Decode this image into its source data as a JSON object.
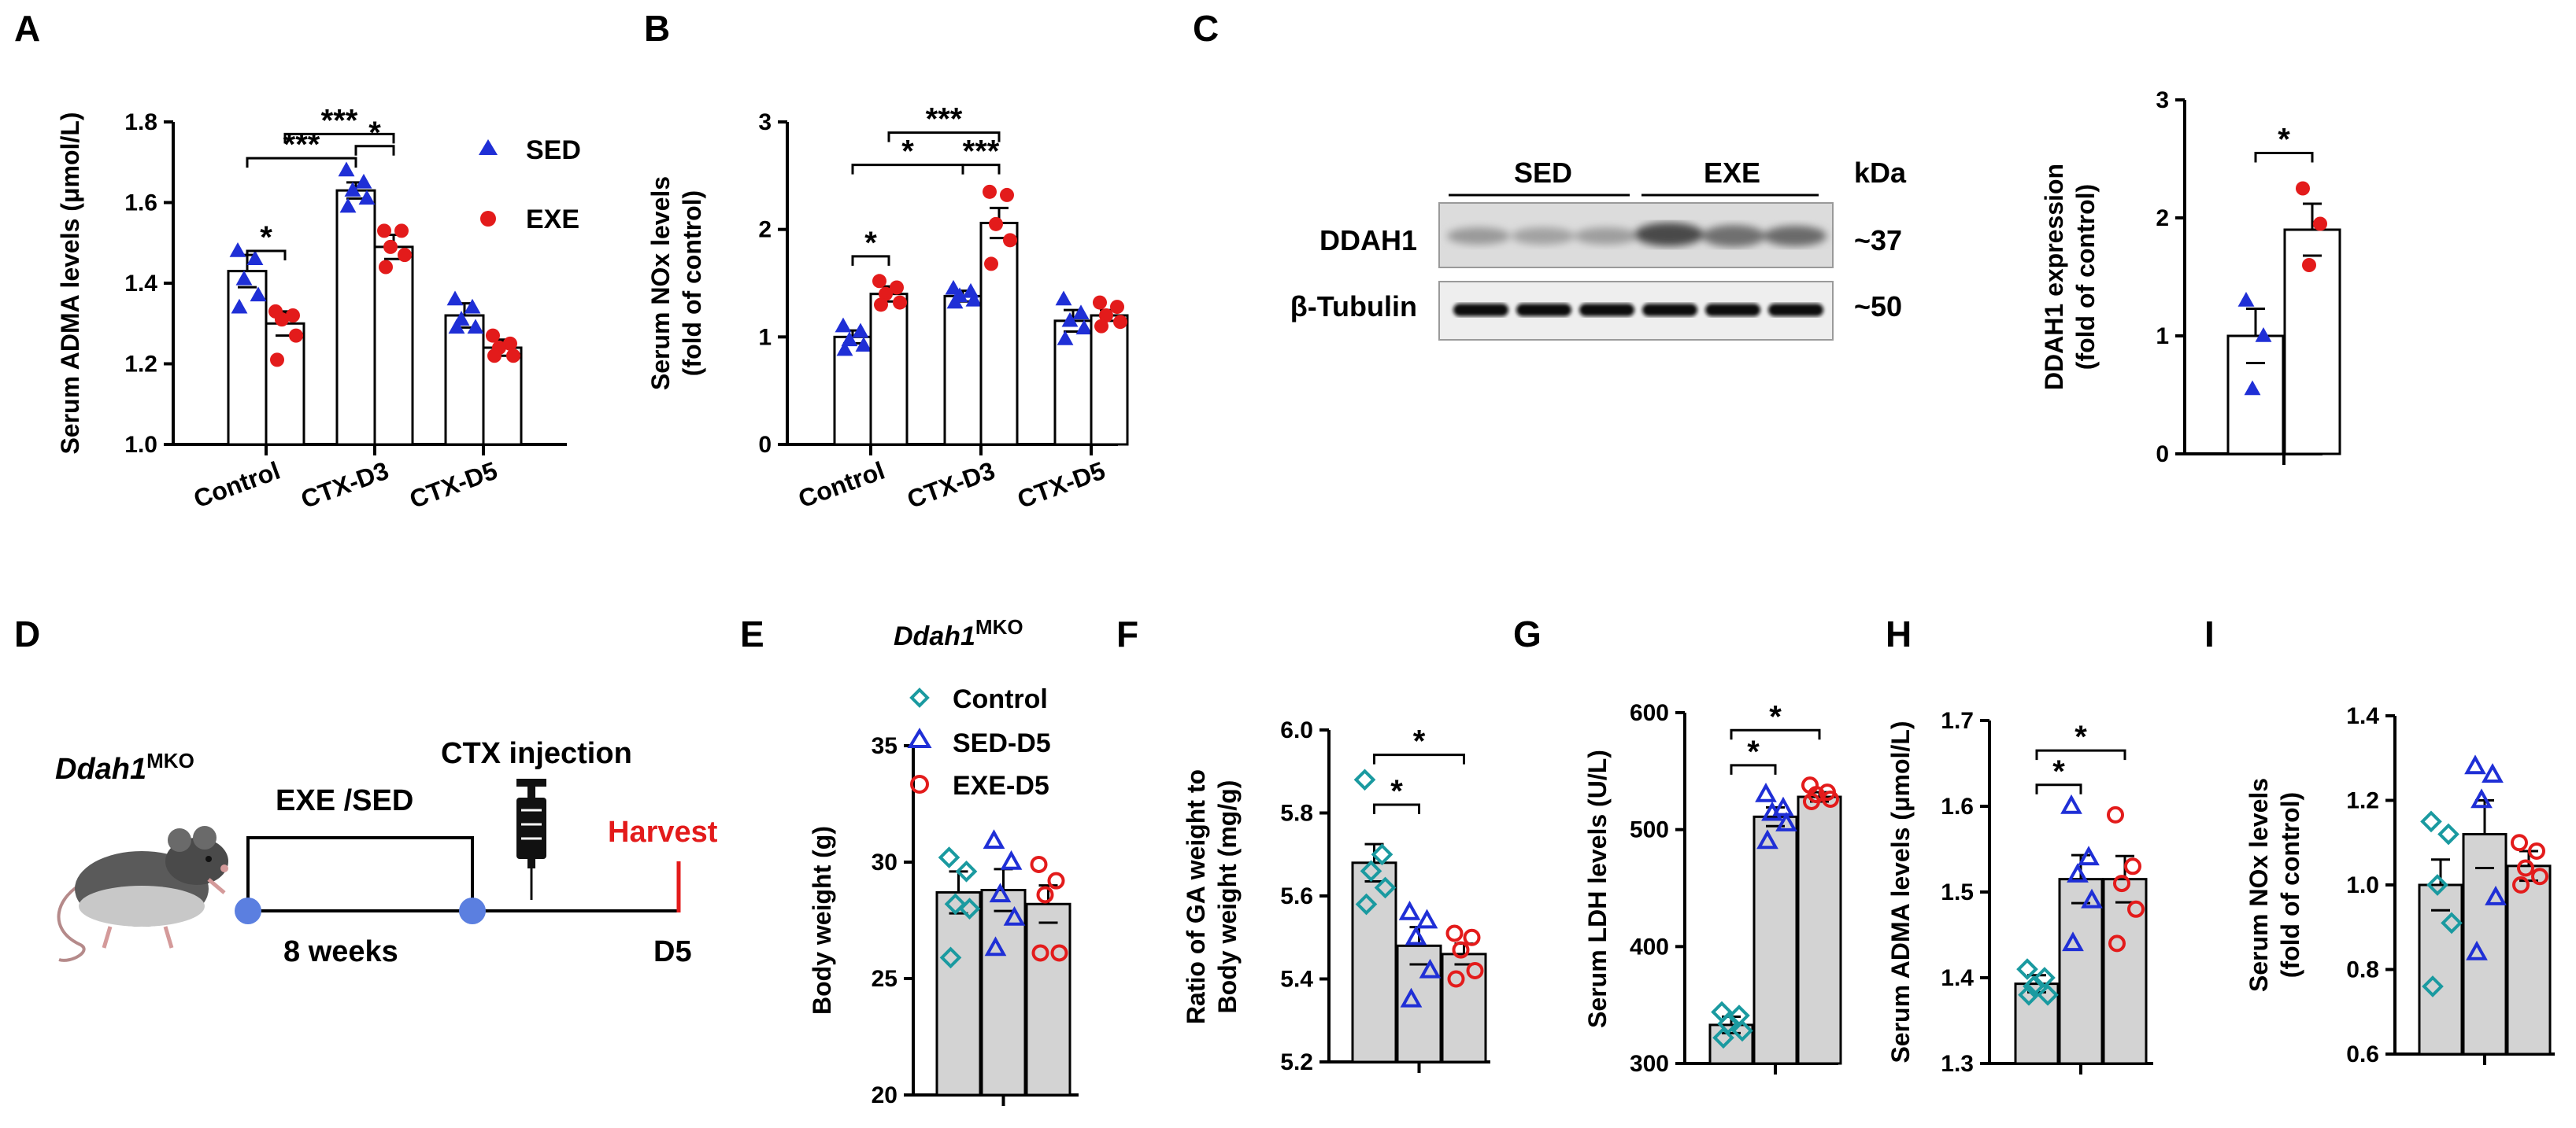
{
  "colors": {
    "sed": "#1f2fd6",
    "exe": "#e31b1b",
    "control": "#1a9aa0",
    "bar_gray": "#d3d3d3",
    "harvest": "#e31b1b",
    "timeline_dot": "#5b7fe0"
  },
  "panel_labels": [
    "A",
    "B",
    "C",
    "D",
    "E",
    "F",
    "G",
    "H",
    "I"
  ],
  "chart_data": [
    {
      "id": "A",
      "type": "bar",
      "ylabel": "Serum ADMA levels (μmol/L)",
      "ylim": [
        1.0,
        1.8
      ],
      "yticks": [
        "1.0",
        "1.2",
        "1.4",
        "1.6",
        "1.8"
      ],
      "categories": [
        "Control",
        "CTX-D3",
        "CTX-D5"
      ],
      "series": [
        {
          "name": "SED",
          "marker": "triangle",
          "values": [
            1.43,
            1.63,
            1.32
          ],
          "sem": [
            0.04,
            0.02,
            0.03
          ],
          "points": [
            [
              1.48,
              1.46,
              1.41,
              1.37,
              1.34
            ],
            [
              1.68,
              1.65,
              1.63,
              1.61,
              1.59
            ],
            [
              1.36,
              1.34,
              1.31,
              1.29,
              1.29
            ]
          ]
        },
        {
          "name": "EXE",
          "marker": "circle",
          "values": [
            1.3,
            1.49,
            1.24
          ],
          "sem": [
            0.03,
            0.03,
            0.02
          ],
          "points": [
            [
              1.33,
              1.32,
              1.31,
              1.27,
              1.21
            ],
            [
              1.53,
              1.53,
              1.49,
              1.47,
              1.44
            ],
            [
              1.27,
              1.25,
              1.24,
              1.22,
              1.22
            ]
          ]
        }
      ],
      "legend": [
        "SED",
        "EXE"
      ],
      "annotations": [
        {
          "from": [
            0,
            0
          ],
          "to": [
            0,
            1
          ],
          "level": 1.48,
          "text": "*"
        },
        {
          "from": [
            0,
            0
          ],
          "to": [
            1,
            0
          ],
          "level": 1.71,
          "text": "***"
        },
        {
          "from": [
            1,
            0
          ],
          "to": [
            1,
            1
          ],
          "level": 1.74,
          "text": "*"
        },
        {
          "from": [
            0,
            1
          ],
          "to": [
            1,
            1
          ],
          "level": 1.77,
          "text": "***"
        }
      ]
    },
    {
      "id": "B",
      "type": "bar",
      "ylabel": [
        "Serum NOx levels",
        "(fold of control)"
      ],
      "ylim": [
        0,
        3
      ],
      "yticks": [
        "0",
        "1",
        "2",
        "3"
      ],
      "categories": [
        "Control",
        "CTX-D3",
        "CTX-D5"
      ],
      "series": [
        {
          "name": "SED",
          "marker": "triangle",
          "values": [
            1.0,
            1.38,
            1.15
          ],
          "sem": [
            0.06,
            0.05,
            0.1
          ],
          "points": [
            [
              1.1,
              1.05,
              0.97,
              0.92,
              0.88
            ],
            [
              1.45,
              1.42,
              1.38,
              1.34,
              1.32
            ],
            [
              1.35,
              1.22,
              1.15,
              1.08,
              0.98
            ]
          ]
        },
        {
          "name": "EXE",
          "marker": "circle",
          "values": [
            1.4,
            2.06,
            1.2
          ],
          "sem": [
            0.07,
            0.14,
            0.05
          ],
          "points": [
            [
              1.52,
              1.46,
              1.4,
              1.32,
              1.3
            ],
            [
              2.35,
              2.32,
              2.05,
              1.9,
              1.68
            ],
            [
              1.32,
              1.28,
              1.2,
              1.14,
              1.1
            ]
          ]
        }
      ],
      "annotations": [
        {
          "from": [
            0,
            0
          ],
          "to": [
            0,
            1
          ],
          "level": 1.75,
          "text": "*"
        },
        {
          "from": [
            0,
            0
          ],
          "to": [
            1,
            0
          ],
          "level": 2.6,
          "text": "*"
        },
        {
          "from": [
            1,
            0
          ],
          "to": [
            1,
            1
          ],
          "level": 2.6,
          "text": "***"
        },
        {
          "from": [
            0,
            1
          ],
          "to": [
            1,
            1
          ],
          "level": 2.9,
          "text": "***"
        }
      ]
    },
    {
      "id": "C",
      "type": "bar",
      "ylabel": [
        "DDAH1 expression",
        "(fold of control)"
      ],
      "ylim": [
        0,
        3
      ],
      "yticks": [
        "0",
        "1",
        "2",
        "3"
      ],
      "categories": [
        ""
      ],
      "series": [
        {
          "name": "SED",
          "marker": "triangle",
          "values": [
            1.0
          ],
          "sem": [
            0.23
          ],
          "points": [
            [
              1.3,
              1.0,
              0.55
            ]
          ]
        },
        {
          "name": "EXE",
          "marker": "circle",
          "values": [
            1.9
          ],
          "sem": [
            0.22
          ],
          "points": [
            [
              2.25,
              1.95,
              1.6
            ]
          ]
        }
      ],
      "annotations": [
        {
          "from": [
            0,
            0
          ],
          "to": [
            0,
            1
          ],
          "level": 2.55,
          "text": "*"
        }
      ]
    },
    {
      "id": "E",
      "type": "bar",
      "ylabel": "Body weight (g)",
      "ylim": [
        20,
        35
      ],
      "yticks": [
        "20",
        "25",
        "30",
        "35"
      ],
      "categories": [
        ""
      ],
      "series": [
        {
          "name": "Control",
          "marker": "diamond",
          "values": [
            28.7
          ],
          "sem": [
            0.9
          ],
          "points": [
            [
              30.2,
              29.6,
              28.2,
              28.0,
              25.9
            ]
          ]
        },
        {
          "name": "SED-D5",
          "marker": "triangle-open",
          "values": [
            28.8
          ],
          "sem": [
            0.9
          ],
          "points": [
            [
              30.9,
              30.0,
              28.6,
              27.6,
              26.3
            ]
          ]
        },
        {
          "name": "EXE-D5",
          "marker": "circle-open",
          "values": [
            28.2
          ],
          "sem": [
            0.8
          ],
          "points": [
            [
              29.9,
              29.2,
              28.6,
              26.1,
              26.1
            ]
          ]
        }
      ],
      "legend_title": "Ddah1",
      "legend_title_sup": "MKO",
      "legend": [
        "Control",
        "SED-D5",
        "EXE-D5"
      ],
      "annotations": []
    },
    {
      "id": "F",
      "type": "bar",
      "ylabel": [
        "Ratio of GA weight to",
        "Body weight (mg/g)"
      ],
      "ylim": [
        5.2,
        6.0
      ],
      "yticks": [
        "5.2",
        "5.4",
        "5.6",
        "5.8",
        "6.0"
      ],
      "categories": [
        ""
      ],
      "series": [
        {
          "name": "Control",
          "marker": "diamond",
          "values": [
            5.68
          ],
          "sem": [
            0.045
          ],
          "points": [
            [
              5.88,
              5.7,
              5.66,
              5.62,
              5.58
            ]
          ]
        },
        {
          "name": "SED-D5",
          "marker": "triangle-open",
          "values": [
            5.48
          ],
          "sem": [
            0.045
          ],
          "points": [
            [
              5.56,
              5.54,
              5.5,
              5.42,
              5.35
            ]
          ]
        },
        {
          "name": "EXE-D5",
          "marker": "circle-open",
          "values": [
            5.46
          ],
          "sem": [
            0.025
          ],
          "points": [
            [
              5.51,
              5.5,
              5.47,
              5.42,
              5.4
            ]
          ]
        }
      ],
      "annotations": [
        {
          "from": [
            0,
            0
          ],
          "to": [
            0,
            1
          ],
          "level": 5.82,
          "text": "*"
        },
        {
          "from": [
            0,
            0
          ],
          "to": [
            0,
            2
          ],
          "level": 5.94,
          "text": "*"
        }
      ]
    },
    {
      "id": "G",
      "type": "bar",
      "ylabel": "Serum LDH levels (U/L)",
      "ylim": [
        300,
        600
      ],
      "yticks": [
        "300",
        "400",
        "500",
        "600"
      ],
      "categories": [
        ""
      ],
      "series": [
        {
          "name": "Control",
          "marker": "diamond",
          "values": [
            333
          ],
          "sem": [
            7
          ],
          "points": [
            [
              344,
              341,
              334,
              328,
              322
            ]
          ]
        },
        {
          "name": "SED-D5",
          "marker": "triangle-open",
          "values": [
            511
          ],
          "sem": [
            8
          ],
          "points": [
            [
              530,
              518,
              514,
              505,
              490
            ]
          ]
        },
        {
          "name": "EXE-D5",
          "marker": "circle-open",
          "values": [
            528
          ],
          "sem": [
            4
          ],
          "points": [
            [
              538,
              532,
              530,
              526,
              524
            ]
          ]
        }
      ],
      "annotations": [
        {
          "from": [
            0,
            0
          ],
          "to": [
            0,
            1
          ],
          "level": 555,
          "text": "*"
        },
        {
          "from": [
            0,
            0
          ],
          "to": [
            0,
            2
          ],
          "level": 585,
          "text": "*"
        }
      ]
    },
    {
      "id": "H",
      "type": "bar",
      "ylabel": "Serum ADMA levels (μmol/L)",
      "ylim": [
        1.3,
        1.7
      ],
      "yticks": [
        "1.3",
        "1.4",
        "1.5",
        "1.6",
        "1.7"
      ],
      "categories": [
        ""
      ],
      "series": [
        {
          "name": "Control",
          "marker": "diamond",
          "values": [
            1.393
          ],
          "sem": [
            0.01
          ],
          "points": [
            [
              1.41,
              1.4,
              1.39,
              1.38,
              1.38
            ]
          ]
        },
        {
          "name": "SED-D5",
          "marker": "triangle-open",
          "values": [
            1.515
          ],
          "sem": [
            0.028
          ],
          "points": [
            [
              1.6,
              1.54,
              1.52,
              1.49,
              1.44
            ]
          ]
        },
        {
          "name": "EXE-D5",
          "marker": "circle-open",
          "values": [
            1.515
          ],
          "sem": [
            0.027
          ],
          "points": [
            [
              1.59,
              1.53,
              1.51,
              1.48,
              1.44
            ]
          ]
        }
      ],
      "annotations": [
        {
          "from": [
            0,
            0
          ],
          "to": [
            0,
            1
          ],
          "level": 1.625,
          "text": "*"
        },
        {
          "from": [
            0,
            0
          ],
          "to": [
            0,
            2
          ],
          "level": 1.665,
          "text": "*"
        }
      ]
    },
    {
      "id": "I",
      "type": "bar",
      "ylabel": [
        "Serum NOx levels",
        "(fold of control)"
      ],
      "ylim": [
        0.6,
        1.4
      ],
      "yticks": [
        "0.6",
        "0.8",
        "1.0",
        "1.2",
        "1.4"
      ],
      "categories": [
        ""
      ],
      "series": [
        {
          "name": "Control",
          "marker": "diamond",
          "values": [
            1.0
          ],
          "sem": [
            0.06
          ],
          "points": [
            [
              1.15,
              1.12,
              1.0,
              0.91,
              0.76
            ]
          ]
        },
        {
          "name": "SED-D5",
          "marker": "triangle-open",
          "values": [
            1.12
          ],
          "sem": [
            0.08
          ],
          "points": [
            [
              1.28,
              1.26,
              1.2,
              0.97,
              0.84
            ]
          ]
        },
        {
          "name": "EXE-D5",
          "marker": "circle-open",
          "values": [
            1.045
          ],
          "sem": [
            0.035
          ],
          "points": [
            [
              1.1,
              1.08,
              1.04,
              1.02,
              1.0
            ]
          ]
        }
      ],
      "annotations": []
    }
  ],
  "blot": {
    "groups": [
      "SED",
      "EXE"
    ],
    "kda_label": "kDa",
    "rows": [
      {
        "label": "DDAH1",
        "kda": "~37"
      },
      {
        "label": "β-Tubulin",
        "kda": "~50"
      }
    ]
  },
  "timeline": {
    "mouse_label": "Ddah1",
    "mouse_sup": "MKO",
    "exercise": "EXE /SED",
    "injection": "CTX injection",
    "harvest": "Harvest",
    "duration": "8 weeks",
    "endpoint": "D5"
  }
}
